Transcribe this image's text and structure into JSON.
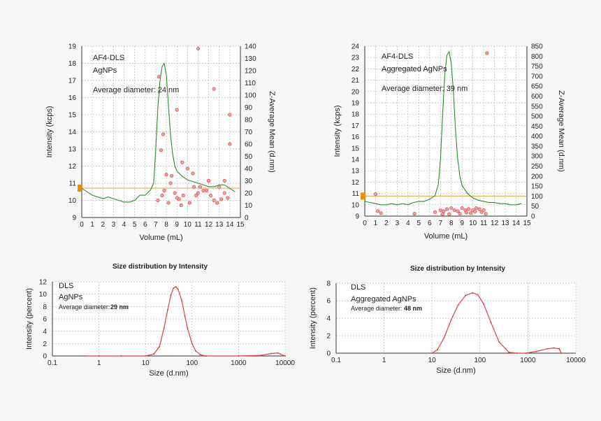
{
  "colors": {
    "intensity_line": "#2e8b2e",
    "z_avg_points": "#e05555",
    "dist_line": "#e04040",
    "baseline": "#e6a040",
    "marker": "#f08c00"
  },
  "chart_data": [
    {
      "type": "line",
      "panel": "top-left",
      "notes": [
        "AF4-DLS",
        "AgNPs",
        "Average diameter: 24 nm"
      ],
      "xlabel": "Volume (mL)",
      "ylabel": "Intensity (kcps)",
      "y2label": "Z-Average Mean (d.nm)",
      "xlim": [
        0,
        15
      ],
      "ylim": [
        9,
        19
      ],
      "y2lim": [
        0,
        140
      ],
      "xticks": [
        "0",
        "1",
        "2",
        "3",
        "4",
        "5",
        "6",
        "7",
        "8",
        "9",
        "10",
        "11",
        "12",
        "13",
        "14",
        "15"
      ],
      "yticks": [
        "9",
        "10",
        "11",
        "12",
        "13",
        "14",
        "15",
        "16",
        "17",
        "18",
        "19"
      ],
      "y2ticks": [
        "0",
        "10",
        "20",
        "30",
        "40",
        "50",
        "60",
        "70",
        "80",
        "90",
        "100",
        "110",
        "120",
        "130",
        "140"
      ],
      "grid": true,
      "baseline_y2": 24,
      "series": [
        {
          "axis": "y",
          "style": "line",
          "x": [
            0,
            0.5,
            1,
            1.5,
            2,
            2.5,
            3,
            3.5,
            4,
            4.5,
            5,
            5.5,
            6,
            6.5,
            6.8,
            7,
            7.2,
            7.4,
            7.6,
            7.8,
            8,
            8.2,
            8.4,
            8.6,
            8.8,
            9,
            9.5,
            10,
            10.5,
            11,
            11.5,
            12,
            12.5,
            13,
            13.5,
            14,
            14.5
          ],
          "values": [
            10.7,
            10.5,
            10.3,
            10.2,
            10.1,
            10.2,
            10.1,
            10.0,
            9.9,
            9.9,
            10.0,
            10.3,
            10.3,
            10.6,
            11.0,
            13.0,
            15.5,
            17.0,
            17.8,
            18.0,
            17.3,
            15.5,
            13.8,
            12.7,
            12.0,
            11.7,
            11.4,
            11.2,
            11.1,
            11.0,
            10.9,
            10.8,
            10.8,
            10.9,
            10.9,
            10.7,
            10.5
          ]
        },
        {
          "axis": "y2",
          "style": "scatter",
          "x": [
            7.3,
            7.5,
            7.7,
            8,
            8.5,
            9,
            9.5,
            10,
            10.5,
            11,
            11.5,
            12,
            12.5,
            13,
            13.5,
            14,
            7.6,
            8.2,
            9.2,
            10.2,
            11.2,
            12.2,
            13.2,
            7.8,
            9,
            11,
            12.5,
            13.5,
            14,
            7.2,
            8.8,
            10.6,
            9.6,
            11.8,
            12.8,
            8.4,
            10.8,
            13.8,
            9.4,
            12
          ],
          "values": [
            115,
            55,
            68,
            35,
            34,
            88,
            45,
            40,
            36,
            138,
            22,
            30,
            105,
            25,
            30,
            60,
            18,
            12,
            15,
            12,
            25,
            18,
            15,
            22,
            16,
            20,
            14,
            20,
            84,
            14,
            20,
            25,
            18,
            22,
            12,
            28,
            18,
            16,
            10,
            30
          ]
        }
      ]
    },
    {
      "type": "line",
      "panel": "top-right",
      "notes": [
        "AF4-DLS",
        "Aggregated AgNPs",
        "Average diameter: 39 nm"
      ],
      "xlabel": "Volume (mL)",
      "ylabel": "Intensity (kcps)",
      "y2label": "Z-Average Mean (d.nm)",
      "xlim": [
        0,
        15
      ],
      "ylim": [
        9,
        24
      ],
      "y2lim": [
        0,
        850
      ],
      "xticks": [
        "0",
        "1",
        "2",
        "3",
        "4",
        "5",
        "6",
        "7",
        "8",
        "9",
        "10",
        "11",
        "12",
        "13",
        "14",
        "15"
      ],
      "yticks": [
        "9",
        "10",
        "11",
        "12",
        "13",
        "14",
        "15",
        "16",
        "17",
        "18",
        "19",
        "20",
        "21",
        "22",
        "23",
        "24"
      ],
      "y2ticks": [
        "0",
        "50",
        "100",
        "150",
        "200",
        "250",
        "300",
        "350",
        "400",
        "450",
        "500",
        "550",
        "600",
        "650",
        "700",
        "750",
        "800",
        "850"
      ],
      "grid": true,
      "baseline_y2": 100,
      "series": [
        {
          "axis": "y",
          "style": "line",
          "x": [
            0,
            0.5,
            1,
            1.5,
            2,
            2.5,
            3,
            3.5,
            4,
            4.5,
            5,
            5.5,
            6,
            6.5,
            6.8,
            7,
            7.2,
            7.4,
            7.6,
            7.8,
            8,
            8.2,
            8.4,
            8.6,
            8.8,
            9,
            9.5,
            10,
            10.5,
            11,
            11.5,
            12,
            12.5,
            13,
            13.5,
            14,
            14.5
          ],
          "values": [
            10.3,
            10.2,
            10.1,
            10.0,
            10.0,
            10.1,
            10.0,
            10.1,
            10.0,
            10.2,
            10.3,
            10.3,
            10.5,
            10.8,
            11.8,
            14.0,
            18.0,
            21.5,
            23.2,
            23.5,
            22.5,
            20.0,
            16.5,
            14.0,
            12.5,
            11.7,
            11.0,
            10.6,
            10.4,
            10.3,
            10.2,
            10.2,
            10.1,
            10.1,
            10.0,
            10.0,
            10.1
          ]
        },
        {
          "axis": "y2",
          "style": "scatter",
          "x": [
            1,
            1.2,
            1.5,
            4.6,
            6.5,
            7,
            7.3,
            7.6,
            8,
            8.3,
            8.6,
            9,
            9.3,
            9.6,
            10,
            10.3,
            10.6,
            11,
            11.3,
            7.2,
            8.8,
            9.8,
            10.8,
            7.8,
            9.4,
            10.2,
            11.2
          ],
          "values": [
            110,
            25,
            15,
            12,
            20,
            30,
            25,
            35,
            40,
            30,
            25,
            40,
            30,
            35,
            30,
            40,
            35,
            30,
            815,
            10,
            12,
            15,
            20,
            10,
            18,
            22,
            12
          ]
        }
      ]
    },
    {
      "type": "line",
      "panel": "bottom-left",
      "title": "Size distribution by Intensity",
      "notes": [
        "DLS",
        "AgNPs",
        "Average diameter: ",
        "29 nm"
      ],
      "xlabel": "Size (d.nm)",
      "ylabel": "Intensity (percent)",
      "xscale": "log",
      "xlim": [
        0.1,
        10000
      ],
      "ylim": [
        0,
        12
      ],
      "xticks": [
        "0.1",
        "1",
        "10",
        "100",
        "1000",
        "10000"
      ],
      "yticks": [
        "0",
        "2",
        "4",
        "6",
        "8",
        "10",
        "12"
      ],
      "grid": true,
      "series": [
        {
          "x": [
            0.5,
            1,
            3,
            10,
            15,
            20,
            25,
            30,
            35,
            40,
            45,
            50,
            60,
            70,
            80,
            100,
            120,
            150,
            200,
            1000,
            3000,
            5000,
            7000,
            8000,
            10000
          ],
          "values": [
            0,
            0,
            0,
            0,
            0.3,
            1.5,
            4.5,
            7.5,
            9.8,
            11.0,
            11.2,
            10.8,
            9.0,
            6.5,
            4.5,
            2.0,
            0.8,
            0.2,
            0,
            0,
            0.1,
            0.4,
            0.5,
            0.3,
            0
          ]
        }
      ]
    },
    {
      "type": "line",
      "panel": "bottom-right",
      "title": "Size distribution by Intensity",
      "notes": [
        "DLS",
        "Aggregated AgNPs",
        "Average diameter: ",
        "48 nm"
      ],
      "xlabel": "Size (d.nm)",
      "ylabel": "Intensity (percent)",
      "xscale": "log",
      "xlim": [
        0.1,
        10000
      ],
      "ylim": [
        0,
        8
      ],
      "xticks": [
        "0.1",
        "1",
        "10",
        "100",
        "1000",
        "10000"
      ],
      "yticks": [
        "0",
        "2",
        "4",
        "6",
        "8"
      ],
      "grid": true,
      "series": [
        {
          "x": [
            10,
            13,
            18,
            25,
            35,
            50,
            70,
            90,
            120,
            170,
            250,
            400,
            600,
            900,
            1500,
            2500,
            3500,
            4500,
            5000
          ],
          "values": [
            0,
            0.4,
            1.8,
            3.8,
            5.5,
            6.6,
            6.9,
            6.7,
            5.6,
            3.5,
            1.3,
            0.1,
            0,
            0,
            0.2,
            0.5,
            0.6,
            0.5,
            0
          ]
        }
      ]
    }
  ]
}
